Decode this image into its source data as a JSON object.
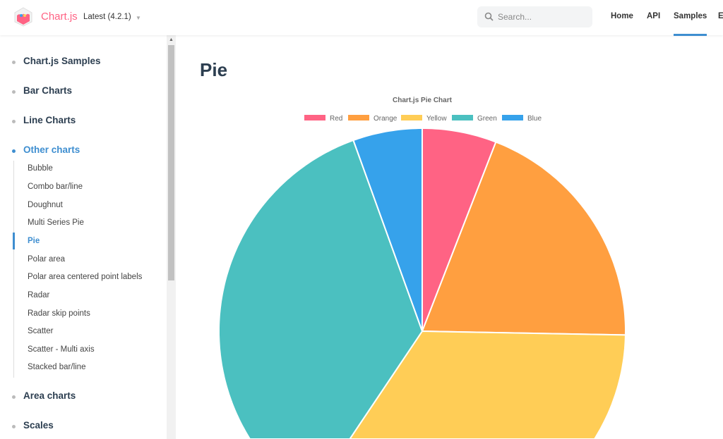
{
  "header": {
    "brand": "Chart.js",
    "version": "Latest (4.2.1)",
    "search_placeholder": "Search...",
    "nav": [
      "Home",
      "API",
      "Samples",
      "Ecosystem"
    ],
    "active_nav": "Samples"
  },
  "sidebar": {
    "sections": [
      {
        "label": "Chart.js Samples"
      },
      {
        "label": "Bar Charts"
      },
      {
        "label": "Line Charts"
      },
      {
        "label": "Other charts",
        "open": true,
        "items": [
          "Bubble",
          "Combo bar/line",
          "Doughnut",
          "Multi Series Pie",
          "Pie",
          "Polar area",
          "Polar area centered point labels",
          "Radar",
          "Radar skip points",
          "Scatter",
          "Scatter - Multi axis",
          "Stacked bar/line"
        ],
        "active": "Pie"
      },
      {
        "label": "Area charts"
      },
      {
        "label": "Scales"
      }
    ]
  },
  "page": {
    "title": "Pie"
  },
  "chart_data": {
    "type": "pie",
    "title": "Chart.js Pie Chart",
    "legend_position": "top",
    "categories": [
      "Red",
      "Orange",
      "Yellow",
      "Green",
      "Blue"
    ],
    "values": [
      5.9,
      19.4,
      34.1,
      35.1,
      5.5
    ],
    "colors": [
      "#ff6384",
      "#ff9f40",
      "#ffcd56",
      "#4bc0c0",
      "#36a2eb"
    ]
  }
}
